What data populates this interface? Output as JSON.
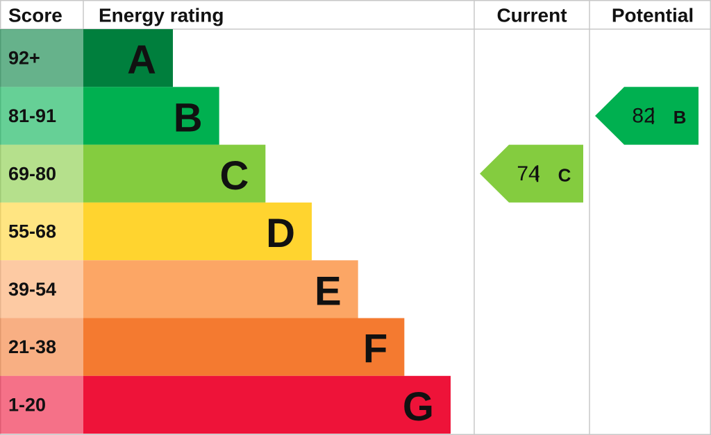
{
  "header": {
    "score": "Score",
    "rating": "Energy rating",
    "current": "Current",
    "potential": "Potential"
  },
  "rows": [
    {
      "score": "92+",
      "letter": "A",
      "color": "#007f3d"
    },
    {
      "score": "81-91",
      "letter": "B",
      "color": "#00b050"
    },
    {
      "score": "69-80",
      "letter": "C",
      "color": "#84cc3f"
    },
    {
      "score": "55-68",
      "letter": "D",
      "color": "#ffd42f"
    },
    {
      "score": "39-54",
      "letter": "E",
      "color": "#fca665"
    },
    {
      "score": "21-38",
      "letter": "F",
      "color": "#f47a30"
    },
    {
      "score": "1-20",
      "letter": "G",
      "color": "#ee1339"
    }
  ],
  "current": {
    "value": 74,
    "letter": "C"
  },
  "potential": {
    "value": 82,
    "letter": "B"
  }
}
